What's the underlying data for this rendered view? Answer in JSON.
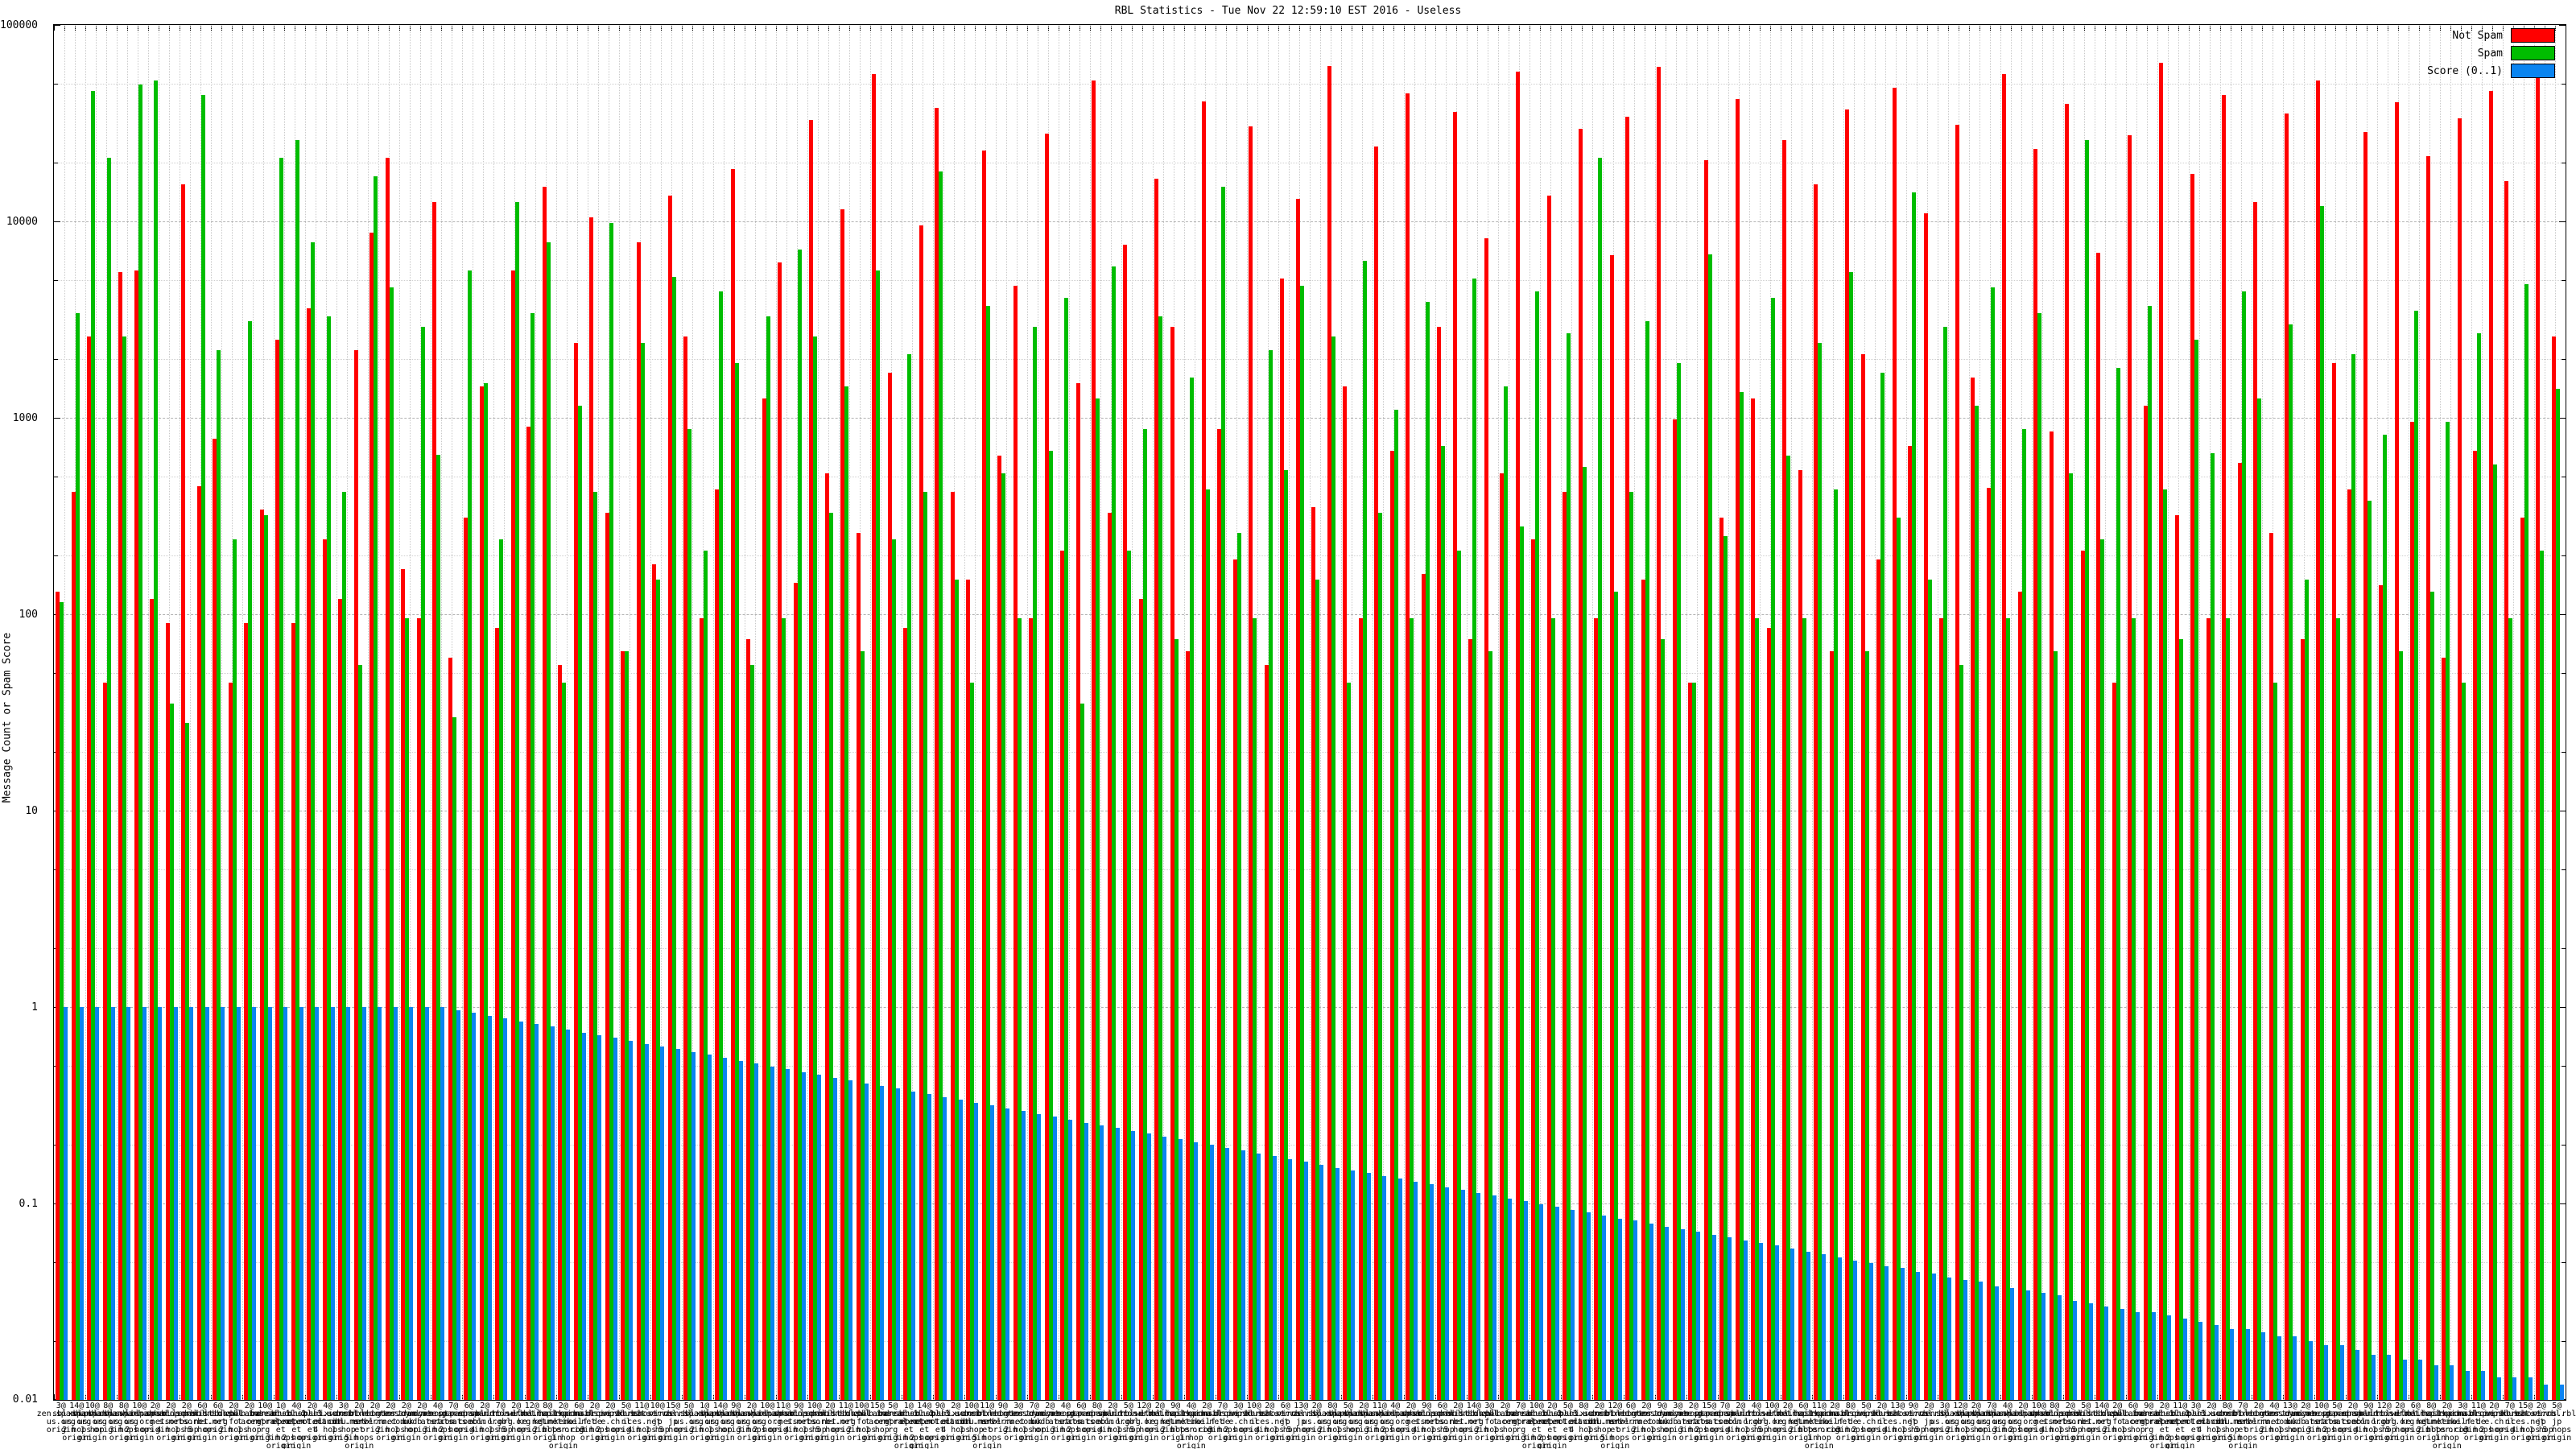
{
  "title": "RBL Statistics - Tue Nov 22 12:59:10 EST 2016 - Useless",
  "legend": [
    {
      "label": "Not Spam",
      "color": "#ff0000"
    },
    {
      "label": "Spam",
      "color": "#00bd00"
    },
    {
      "label": "Score (0..1)",
      "color": "#0a84f0"
    }
  ],
  "y_axis": {
    "label": "Message Count or Spam Score",
    "ticks": [
      "100000",
      "10000",
      "1000",
      "100",
      "10",
      "1",
      "0.1",
      "0.01"
    ]
  },
  "chart_data": {
    "type": "bar",
    "title": "RBL Statistics - Tue Nov 22 12:59:10 EST 2016 - Useless",
    "xlabel": "",
    "ylabel": "Message Count or Spam Score",
    "y_scale": "log",
    "ylim": [
      0.01,
      100000
    ],
    "grid": true,
    "legend_position": "top-right",
    "series": [
      {
        "name": "Not Spam",
        "color": "#ff0000",
        "values": [
          130,
          420,
          2600,
          45,
          5500,
          5600,
          120,
          90,
          15500,
          450,
          780,
          45,
          90,
          340,
          2500,
          90,
          3600,
          240,
          120,
          2200,
          8800,
          21000,
          170,
          95,
          12500,
          60,
          310,
          1450,
          85,
          5600,
          900,
          15000,
          55,
          2400,
          10500,
          330,
          65,
          7800,
          180,
          13500,
          2600,
          95,
          430,
          18500,
          75,
          1250,
          6200,
          145,
          33000,
          520,
          11500,
          260,
          56000,
          1700,
          85,
          9500,
          38000,
          420,
          150,
          23000,
          640,
          4700,
          95,
          28000,
          210,
          1500,
          52000,
          330,
          7600,
          120,
          16500,
          2900,
          65,
          41000,
          880,
          190,
          30500,
          55,
          5100,
          13000,
          350,
          62000,
          1450,
          95,
          24000,
          680,
          45000,
          160,
          2900,
          36000,
          75,
          8200,
          520,
          58000,
          240,
          13500,
          420,
          29500,
          95,
          6700,
          34000,
          150,
          61000,
          980,
          45,
          20500,
          310,
          42000,
          1250,
          85,
          26000,
          540,
          15500,
          65,
          37000,
          2100,
          190,
          48000,
          720,
          11000,
          95,
          31000,
          1600,
          440,
          56000,
          130,
          23500,
          850,
          39500,
          210,
          6900,
          45,
          27500,
          1150,
          64000,
          320,
          17500,
          95,
          44000,
          590,
          12500,
          260,
          35500,
          75,
          52000,
          1900,
          430,
          28500,
          140,
          40500,
          950,
          21500,
          60,
          33500,
          680,
          46000,
          16000,
          310,
          58000,
          2600
        ]
      },
      {
        "name": "Spam",
        "color": "#00bd00",
        "values": [
          115,
          3400,
          46000,
          21000,
          2600,
          50000,
          52000,
          35,
          28,
          44000,
          2200,
          240,
          3100,
          320,
          21000,
          26000,
          7800,
          3300,
          420,
          55,
          17000,
          4600,
          95,
          2900,
          650,
          30,
          5600,
          1500,
          240,
          12500,
          3400,
          7800,
          45,
          1150,
          420,
          9800,
          65,
          2400,
          150,
          5200,
          880,
          210,
          4400,
          1900,
          55,
          3300,
          95,
          7200,
          2600,
          330,
          1450,
          65,
          5600,
          240,
          2100,
          420,
          18000,
          150,
          45,
          3700,
          520,
          95,
          2900,
          680,
          4100,
          35,
          1250,
          5900,
          210,
          880,
          3300,
          75,
          1600,
          430,
          15000,
          260,
          95,
          2200,
          540,
          4700,
          150,
          2600,
          45,
          6300,
          330,
          1100,
          95,
          3900,
          720,
          210,
          5100,
          65,
          1450,
          280,
          4400,
          95,
          2700,
          560,
          21000,
          130,
          420,
          3100,
          75,
          1900,
          45,
          6800,
          250,
          1350,
          95,
          4100,
          640,
          95,
          2400,
          430,
          5500,
          65,
          1700,
          310,
          14000,
          150,
          2900,
          55,
          1150,
          4600,
          95,
          880,
          3400,
          65,
          520,
          26000,
          240,
          1800,
          95,
          3700,
          430,
          75,
          2500,
          660,
          95,
          4400,
          1250,
          45,
          3000,
          150,
          12000,
          95,
          2100,
          380,
          820,
          65,
          3500,
          130,
          950,
          45,
          2700,
          580,
          95,
          4800,
          210,
          1400
        ]
      },
      {
        "name": "Score (0..1)",
        "color": "#0a84f0",
        "values": [
          1,
          1,
          1,
          1,
          1,
          1,
          1,
          1,
          1,
          1,
          1,
          1,
          1,
          1,
          1,
          1,
          1,
          1,
          1,
          1,
          1,
          1,
          1,
          1,
          1,
          0.967,
          0.936,
          0.906,
          0.876,
          0.848,
          0.82,
          0.794,
          0.768,
          0.743,
          0.719,
          0.696,
          0.673,
          0.651,
          0.63,
          0.61,
          0.59,
          0.571,
          0.552,
          0.534,
          0.517,
          0.5,
          0.484,
          0.468,
          0.453,
          0.438,
          0.424,
          0.41,
          0.397,
          0.384,
          0.372,
          0.36,
          0.348,
          0.337,
          0.326,
          0.315,
          0.305,
          0.295,
          0.285,
          0.276,
          0.267,
          0.258,
          0.25,
          0.242,
          0.234,
          0.227,
          0.219,
          0.212,
          0.205,
          0.199,
          0.192,
          0.186,
          0.18,
          0.174,
          0.168,
          0.163,
          0.158,
          0.152,
          0.148,
          0.143,
          0.138,
          0.134,
          0.129,
          0.125,
          0.121,
          0.117,
          0.113,
          0.11,
          0.106,
          0.103,
          0.099,
          0.096,
          0.093,
          0.09,
          0.087,
          0.084,
          0.082,
          0.079,
          0.076,
          0.074,
          0.072,
          0.069,
          0.067,
          0.065,
          0.063,
          0.061,
          0.059,
          0.057,
          0.055,
          0.053,
          0.051,
          0.05,
          0.048,
          0.047,
          0.045,
          0.044,
          0.042,
          0.041,
          0.04,
          0.038,
          0.037,
          0.036,
          0.035,
          0.034,
          0.032,
          0.031,
          0.03,
          0.029,
          0.028,
          0.028,
          0.027,
          0.026,
          0.025,
          0.024,
          0.023,
          0.023,
          0.022,
          0.021,
          0.021,
          0.02,
          0.019,
          0.019,
          0.018,
          0.017,
          0.017,
          0.016,
          0.016,
          0.015,
          0.015,
          0.014,
          0.014,
          0.013,
          0.013,
          0.013,
          0.012,
          0.012
        ]
      }
    ],
    "category_label_counts": [
      3,
      14,
      10,
      8,
      8,
      10,
      2,
      2,
      2,
      6,
      6,
      2,
      2,
      10,
      1,
      4,
      2,
      4,
      3,
      2,
      2,
      2,
      2,
      2,
      4,
      7,
      6,
      2,
      7,
      2,
      12,
      8,
      2,
      6,
      2,
      2,
      5,
      11,
      10,
      15,
      5,
      1,
      14,
      9,
      2,
      10,
      11,
      9,
      10,
      2,
      11,
      10,
      15,
      5,
      1,
      14,
      9,
      2,
      10,
      11,
      9,
      3,
      7,
      2,
      4,
      6,
      8,
      2,
      5,
      12,
      2,
      9,
      4,
      2,
      7,
      3,
      10,
      2,
      6,
      13,
      2,
      8,
      5,
      2,
      11,
      4,
      2,
      9,
      6,
      2,
      14,
      3,
      2,
      7,
      10,
      2,
      5,
      8,
      2,
      12,
      6,
      2,
      9,
      3,
      2,
      15,
      7,
      2,
      4,
      10,
      2,
      6,
      11,
      2,
      8,
      5,
      2,
      13,
      9,
      2,
      3,
      12,
      2,
      7,
      4,
      2,
      10,
      8,
      2,
      5,
      14,
      2,
      6,
      9,
      2,
      11,
      3,
      2,
      8,
      7,
      2,
      4,
      13,
      2,
      10,
      5,
      2,
      9,
      12,
      2,
      6,
      8,
      2,
      3,
      11,
      2,
      7,
      15,
      2,
      5
    ],
    "category_hosts": [
      [
        "zen.spamha",
        "us.org"
      ],
      [
        "sbl.spamha",
        "us.org"
      ],
      [
        "xbl.spamha",
        "us.org"
      ],
      [
        "pbl.spamha",
        "us.org"
      ],
      [
        "dbl.spamha",
        "us.org"
      ],
      [
        "swl.spamha",
        "us.org"
      ],
      [
        "bl.spamcop",
        ".net"
      ],
      [
        "dnsbl.sorb",
        "s.net"
      ],
      [
        "dul.dnsbl.",
        "sorbs.net"
      ],
      [
        "spam.dnsbl",
        ".sorbs.net"
      ],
      [
        "list.dnswl",
        ".org"
      ],
      [
        "db.wpbl.in",
        "fo"
      ],
      [
        "cbl.abusea",
        "t.org"
      ],
      [
        "b.barracud",
        "acentral.o",
        "rg"
      ],
      [
        "dnsbl-1.uc",
        "eprotect.n",
        "et"
      ],
      [
        "dnsbl-2.uc",
        "eprotect.n",
        "et"
      ],
      [
        "dnsbl-3.uc",
        "eprotect.n",
        "et"
      ],
      [
        "psbl.surri",
        "el.com"
      ],
      [
        "ix.dnsbl.m",
        "anitu.net"
      ],
      [
        "combined.r",
        "bl.msrbl.n",
        "et"
      ],
      [
        "rbl.inters",
        "erver.net"
      ],
      [
        "bogons.cym",
        "ru.com"
      ],
      [
        "tor.dan.me",
        ".uk"
      ],
      [
        "truncate.g",
        "budb.net"
      ],
      [
        "dyna.spamr",
        "ats.com"
      ],
      [
        "noptr.spam",
        "rats.com"
      ],
      [
        "spam.spamr",
        "ats.com"
      ],
      [
        "dnsbl.dron",
        "ebl.org"
      ],
      [
        "multi.surb",
        "l.org"
      ],
      [
        "rbl.efnetr",
        "bl.org"
      ],
      [
        "wl.mailspi",
        "ke.net"
      ],
      [
        "bl.mailspi",
        "ke.net"
      ],
      [
        "hostkarma.",
        "junkemailf",
        "ilter.com"
      ],
      [
        "rep.mailsp",
        "ike.net"
      ],
      [
        "dnsbl.inps",
        ".de"
      ],
      [
        "drone.abus",
        "e.ch"
      ],
      [
        "virbl.bit.",
        "nl"
      ],
      [
        "korea.serv",
        "ices.net"
      ],
      [
        "short.rbl.",
        "jp"
      ],
      [
        "virus.rbl.",
        "jp"
      ]
    ],
    "category_hops_variants": [
      [
        "origin"
      ],
      [
        "2 hops",
        "origin"
      ],
      [
        "1 hop",
        "origin"
      ],
      [
        "origin"
      ],
      [
        "3 hops",
        "origin"
      ],
      [
        "2 hops",
        "origin"
      ],
      [
        "origin"
      ],
      [
        "4 hops",
        "origin"
      ],
      [
        "1 hop",
        "origin"
      ],
      [
        "5 hops",
        "origin"
      ]
    ]
  },
  "layout_text": {
    "at_suffix": "@"
  }
}
